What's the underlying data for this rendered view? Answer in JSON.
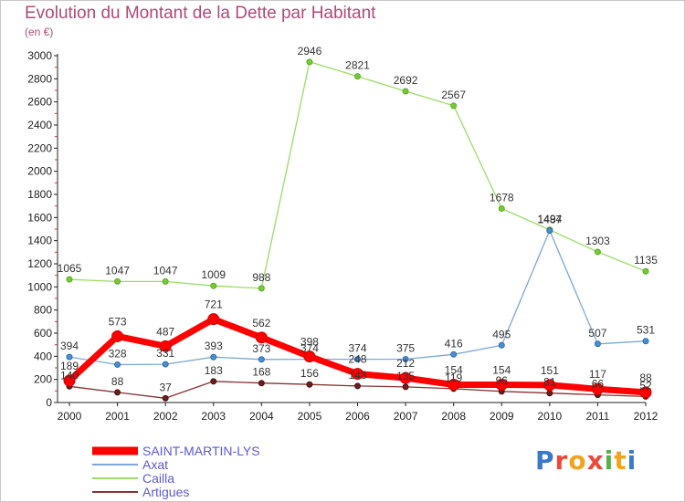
{
  "header": {
    "title": "Evolution du Montant de la Dette par Habitant",
    "subtitle": "(en €)"
  },
  "logo": {
    "text": "Proxiti"
  },
  "chart_data": {
    "type": "line",
    "title": "Evolution du Montant de la Dette par Habitant",
    "subtitle": "(en €)",
    "xlabel": "",
    "ylabel": "",
    "x": [
      "2000",
      "2001",
      "2002",
      "2003",
      "2004",
      "2005",
      "2006",
      "2007",
      "2008",
      "2009",
      "2010",
      "2011",
      "2012"
    ],
    "ylim": [
      0,
      3000
    ],
    "yticks": [
      0,
      200,
      400,
      600,
      800,
      1000,
      1200,
      1400,
      1600,
      1800,
      2000,
      2200,
      2400,
      2600,
      2800,
      3000
    ],
    "grid": false,
    "legend_position": "bottom-left",
    "series": [
      {
        "name": "SAINT-MARTIN-LYS",
        "color": "#ff0000",
        "values": [
          189,
          573,
          487,
          721,
          562,
          398,
          248,
          212,
          154,
          154,
          151,
          117,
          88
        ],
        "labels": [
          "189",
          "573",
          "487",
          "721",
          "562",
          "398",
          "248",
          "212",
          "154",
          "154",
          "151",
          "117",
          "88"
        ]
      },
      {
        "name": "Axat",
        "color": "#7ba8d4",
        "values": [
          394,
          328,
          331,
          393,
          373,
          374,
          374,
          375,
          416,
          495,
          1487,
          507,
          531
        ],
        "labels": [
          "394",
          "328",
          "331",
          "393",
          "373",
          "374",
          "374",
          "375",
          "416",
          "495",
          "1487",
          "507",
          "531"
        ]
      },
      {
        "name": "Cailla",
        "color": "#99dd66",
        "values": [
          1065,
          1047,
          1047,
          1009,
          988,
          2946,
          2821,
          2692,
          2567,
          1678,
          1494,
          1303,
          1135
        ],
        "labels": [
          "1065",
          "1047",
          "1047",
          "1009",
          "988",
          "2946",
          "2821",
          "2692",
          "2567",
          "1678",
          "1494",
          "1303",
          "1135"
        ]
      },
      {
        "name": "Artigues",
        "color": "#883333",
        "values": [
          140,
          88,
          37,
          183,
          168,
          156,
          143,
          135,
          119,
          96,
          81,
          66,
          52
        ],
        "labels": [
          "140",
          "88",
          "37",
          "183",
          "168",
          "156",
          "143",
          "135",
          "119",
          "96",
          "81",
          "66",
          "52"
        ]
      }
    ]
  }
}
